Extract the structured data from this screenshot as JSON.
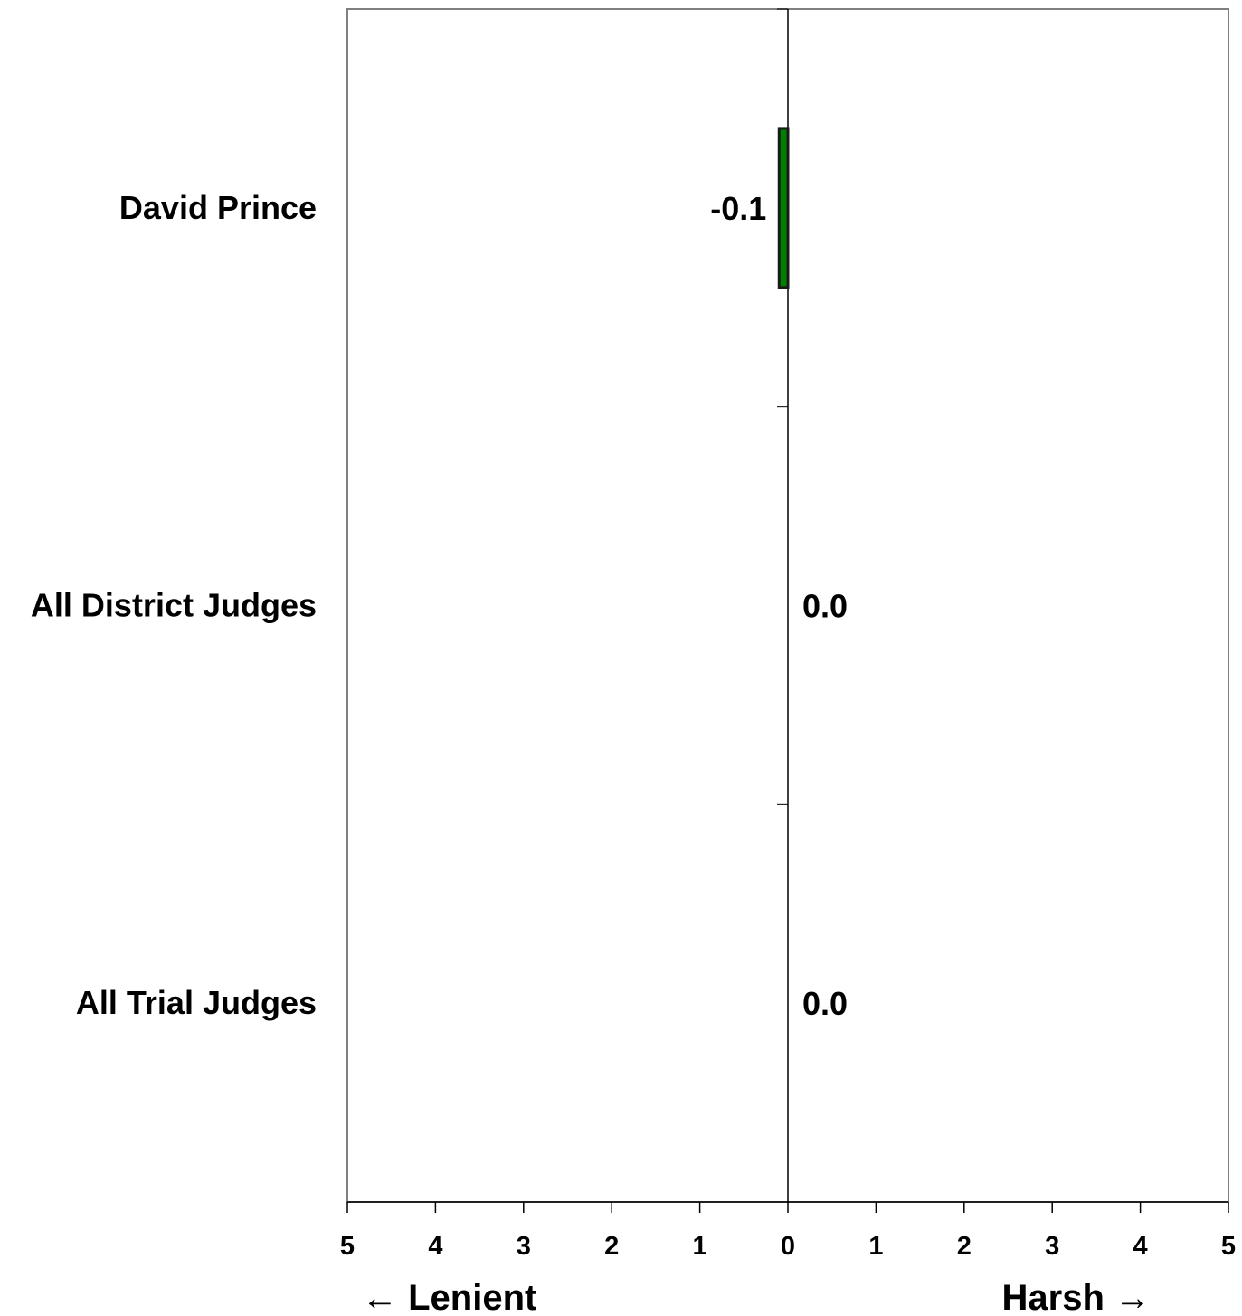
{
  "chart_data": {
    "type": "bar",
    "orientation": "horizontal",
    "categories": [
      "David Prince",
      "All District Judges",
      "All Trial Judges"
    ],
    "values": [
      -0.1,
      0.0,
      0.0
    ],
    "value_labels": [
      "-0.1",
      "0.0",
      "0.0"
    ],
    "xlim": [
      -5,
      5
    ],
    "x_ticks": [
      -5,
      -4,
      -3,
      -2,
      -1,
      0,
      1,
      2,
      3,
      4,
      5
    ],
    "x_tick_labels": [
      "5",
      "4",
      "3",
      "2",
      "1",
      "0",
      "1",
      "2",
      "3",
      "4",
      "5"
    ],
    "left_direction_label": "← Lenient",
    "right_direction_label": "Harsh →",
    "grid": false,
    "legend": "none",
    "bar_color": "#008000"
  }
}
